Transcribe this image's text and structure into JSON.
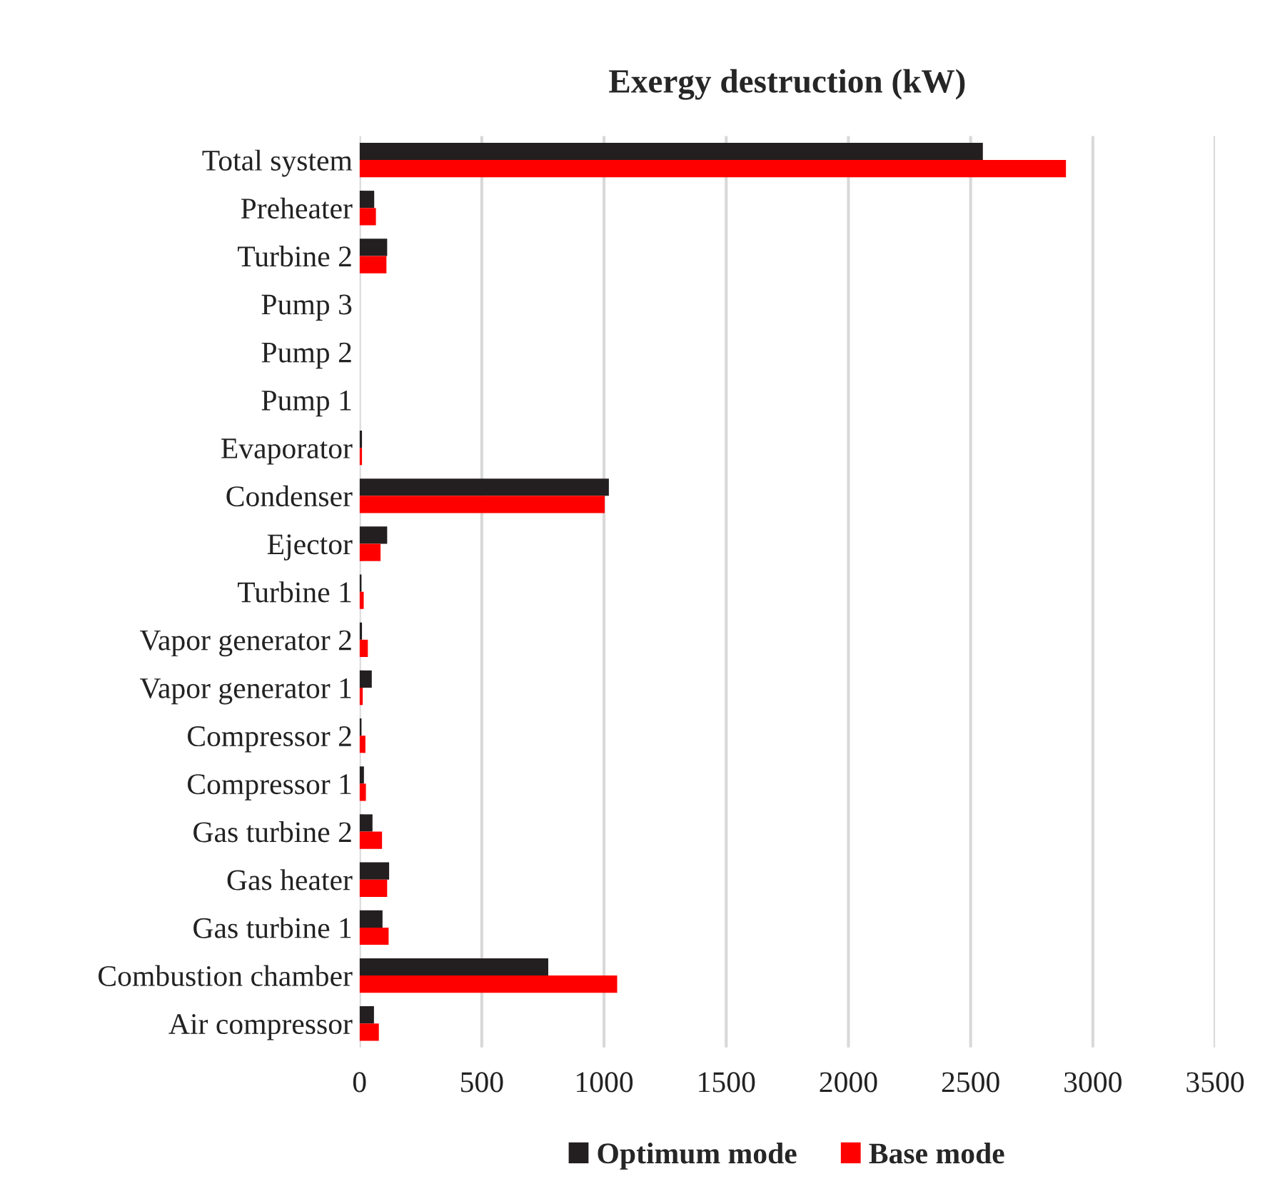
{
  "chart_data": {
    "type": "bar",
    "orientation": "horizontal",
    "title": "Exergy destruction (kW)",
    "categories": [
      "Total system",
      "Preheater",
      "Turbine 2",
      "Pump 3",
      "Pump 2",
      "Pump 1",
      "Evaporator",
      "Condenser",
      "Ejector",
      "Turbine 1",
      "Vapor generator 2",
      "Vapor generator 1",
      "Compressor 2",
      "Compressor 1",
      "Gas turbine 2",
      "Gas heater",
      "Gas turbine 1",
      "Combustion chamber",
      "Air compressor"
    ],
    "series": [
      {
        "name": "Optimum mode",
        "color": "#231f20",
        "values": [
          2550,
          60,
          113,
          0,
          0,
          0,
          10,
          1020,
          113,
          8,
          10,
          50,
          8,
          18,
          53,
          121,
          94,
          772,
          59
        ]
      },
      {
        "name": "Base mode",
        "color": "#ff0000",
        "values": [
          2890,
          67,
          110,
          0,
          0,
          0,
          10,
          1003,
          86,
          17,
          34,
          13,
          24,
          26,
          92,
          113,
          119,
          1054,
          79
        ]
      }
    ],
    "xlim": [
      0,
      3500
    ],
    "xticks": [
      0,
      500,
      1000,
      1500,
      2000,
      2500,
      3000,
      3500
    ],
    "grid": "x",
    "legend": "bottom"
  }
}
